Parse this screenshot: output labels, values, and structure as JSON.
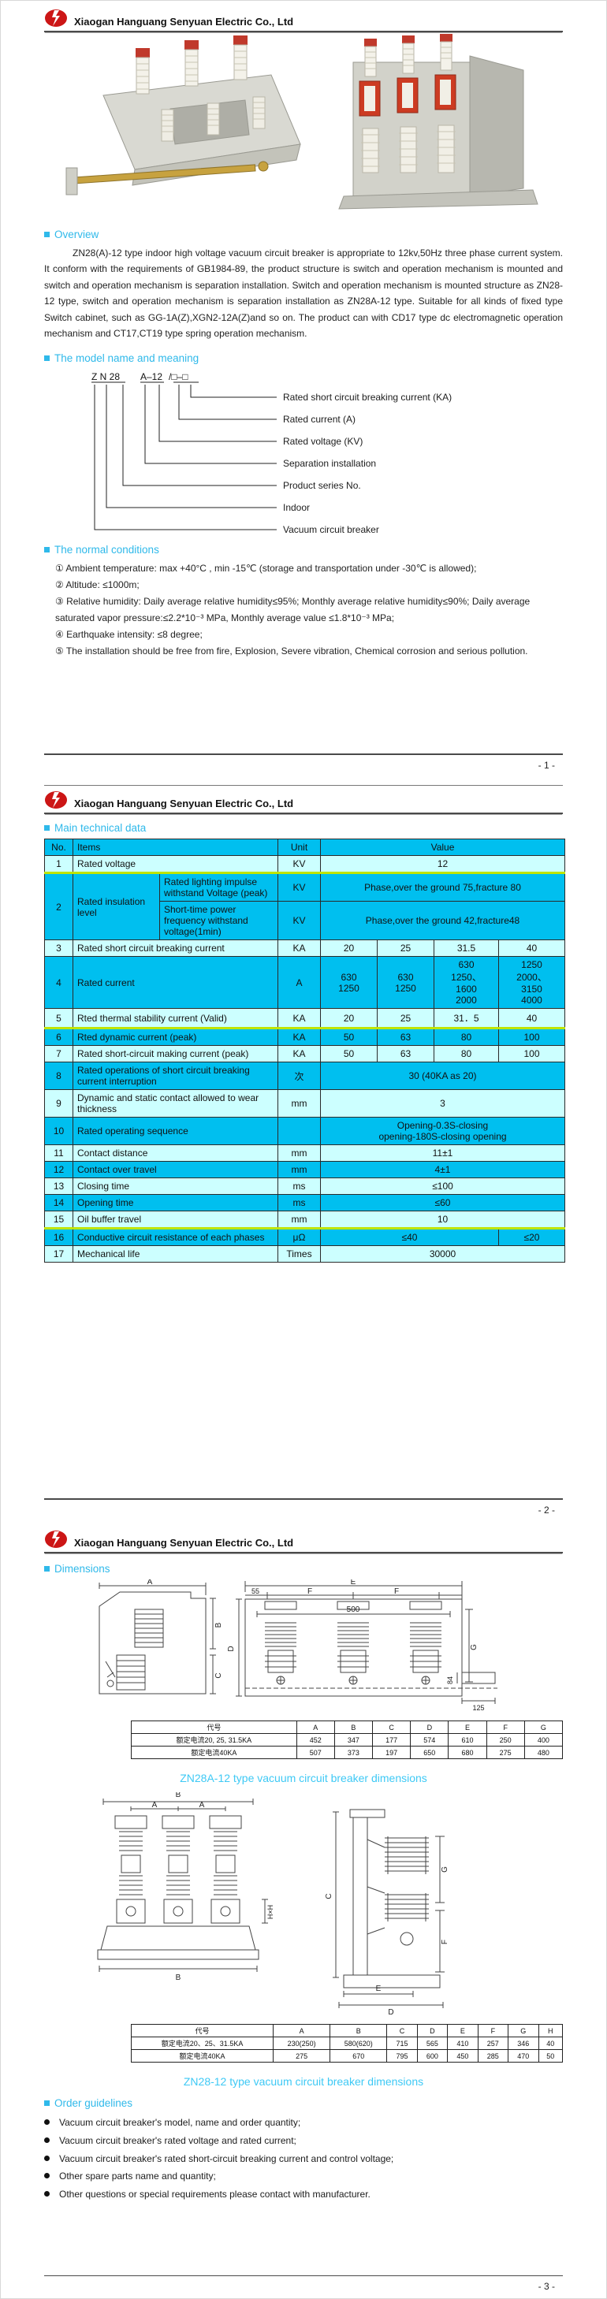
{
  "colors": {
    "accent": "#2fb9ea",
    "caption": "#3ec9f5",
    "table_cyan": "#00bfef",
    "table_light": "#ccffff",
    "separator_green": "#bfe400",
    "logo_red": "#cc1616"
  },
  "header": {
    "company": "Xiaogan Hanguang Senyuan Electric Co., Ltd",
    "logo_icon": "red-ellipse-lightning"
  },
  "footer": {
    "p1": "- 1 -",
    "p2": "- 2 -",
    "p3": "- 3 -"
  },
  "overview": {
    "title": "Overview",
    "paragraph": "ZN28(A)-12 type indoor high voltage vacuum circuit breaker is appropriate to 12kv,50Hz three phase current system. It conform with the requirements of GB1984-89, the product structure is switch and operation mechanism is mounted and switch and operation mechanism is separation installation. Switch and operation mechanism is mounted structure as ZN28-12 type, switch and operation mechanism is separation installation as ZN28A-12 type. Suitable for all kinds of fixed type Switch cabinet, such as GG-1A(Z),XGN2-12A(Z)and so on. The product can with CD17 type dc electromagnetic operation mechanism and CT17,CT19 type spring operation mechanism."
  },
  "model": {
    "title": "The model name and meaning",
    "code_part1": "Z N 28",
    "code_part2": "A–12",
    "code_part3": "/□–□",
    "labels": [
      "Rated short circuit breaking current (KA)",
      "Rated current (A)",
      "Rated voltage (KV)",
      "Separation installation",
      "Product series No.",
      "Indoor",
      "Vacuum circuit breaker"
    ]
  },
  "conditions": {
    "title": "The normal conditions",
    "items": [
      "①  Ambient temperature:  max +40°C ,  min -15℃ (storage and transportation under -30℃ is allowed);",
      "②  Altitude: ≤1000m;",
      "③  Relative humidity: Daily average relative humidity≤95%; Monthly average relative humidity≤90%; Daily average saturated vapor pressure:≤2.2*10⁻³ MPa,  Monthly average value ≤1.8*10⁻³ MPa;",
      "④  Earthquake intensity:  ≤8 degree;",
      "⑤  The installation should be free from fire, Explosion,  Severe vibration, Chemical corrosion and serious pollution."
    ]
  },
  "technical": {
    "title": "Main technical data",
    "head": {
      "no": "No.",
      "items": "Items",
      "unit": "Unit",
      "value": "Value"
    },
    "r1": {
      "no": "1",
      "item": "Rated voltage",
      "unit": "KV",
      "value": "12"
    },
    "r2": {
      "no": "2",
      "item": "Rated insulation level",
      "sub1": "Rated lighting impulse withstand Voltage (peak)",
      "unit1": "KV",
      "val1": "Phase,over the ground 75,fracture 80",
      "sub2": "Short-time power frequency withstand voltage(1min)",
      "unit2": "KV",
      "val2": "Phase,over the ground 42,fracture48"
    },
    "r3": {
      "no": "3",
      "item": "Rated short circuit breaking current",
      "unit": "KA",
      "v1": "20",
      "v2": "25",
      "v3": "31.5",
      "v4": "40"
    },
    "r4": {
      "no": "4",
      "item": "Rated current",
      "unit": "A",
      "v1": "630\n1250",
      "v2": "630\n1250",
      "v3": "630\n1250、\n1600\n2000",
      "v4": "1250\n2000、\n3150\n4000"
    },
    "r5": {
      "no": "5",
      "item": "Rted thermal stability current (Valid)",
      "unit": "KA",
      "v1": "20",
      "v2": "25",
      "v3": "31．5",
      "v4": "40"
    },
    "r6": {
      "no": "6",
      "item": "Rted dynamic current (peak)",
      "unit": "KA",
      "v1": "50",
      "v2": "63",
      "v3": "80",
      "v4": "100"
    },
    "r7": {
      "no": "7",
      "item": "Rated short-circuit making current (peak)",
      "unit": "KA",
      "v1": "50",
      "v2": "63",
      "v3": "80",
      "v4": "100"
    },
    "r8": {
      "no": "8",
      "item": "Rated operations of short circuit breaking current interruption",
      "unit": "次",
      "value": "30 (40KA as 20)"
    },
    "r9": {
      "no": "9",
      "item": "Dynamic and static contact allowed to wear thickness",
      "unit": "mm",
      "value": "3"
    },
    "r10": {
      "no": "10",
      "item": "Rated operating sequence",
      "unit": "",
      "value": "Opening-0.3S-closing\nopening-180S-closing opening"
    },
    "r11": {
      "no": "11",
      "item": "Contact distance",
      "unit": "mm",
      "value": "11±1"
    },
    "r12": {
      "no": "12",
      "item": "Contact over travel",
      "unit": "mm",
      "value": "4±1"
    },
    "r13": {
      "no": "13",
      "item": "Closing time",
      "unit": "ms",
      "value": "≤100"
    },
    "r14": {
      "no": "14",
      "item": "Opening time",
      "unit": "ms",
      "value": "≤60"
    },
    "r15": {
      "no": "15",
      "item": "Oil buffer travel",
      "unit": "mm",
      "value": "10"
    },
    "r16": {
      "no": "16",
      "item": "Conductive circuit resistance of each phases",
      "unit": "μΩ",
      "v1": "≤40",
      "v2": "≤20"
    },
    "r17": {
      "no": "17",
      "item": "Mechanical life",
      "unit": "Times",
      "value": "30000"
    }
  },
  "dimensions": {
    "title": "Dimensions",
    "drawing_a": {
      "caption": "ZN28A-12 type vacuum circuit breaker dimensions",
      "labels": {
        "a": "A",
        "b": "B",
        "c": "C",
        "e": "E",
        "n55": "55",
        "f1": "F",
        "f2": "F",
        "n500": "500",
        "d": "D",
        "g": "G",
        "n84": "84",
        "n125": "125"
      },
      "table": {
        "headers": [
          "代号",
          "A",
          "B",
          "C",
          "D",
          "E",
          "F",
          "G"
        ],
        "rows": [
          [
            "额定电流20, 25, 31.5KA",
            "452",
            "347",
            "177",
            "574",
            "610",
            "250",
            "400"
          ],
          [
            "额定电流40KA",
            "507",
            "373",
            "197",
            "650",
            "680",
            "275",
            "480"
          ]
        ]
      }
    },
    "drawing_b": {
      "caption": "ZN28-12 type vacuum circuit breaker dimensions",
      "labels": {
        "b_top": "B",
        "a1": "A",
        "a2": "A",
        "hh": "H×H",
        "b_bottom": "B",
        "c": "C",
        "g": "G",
        "f": "F",
        "e": "E",
        "d": "D"
      },
      "table": {
        "headers": [
          "代号",
          "A",
          "B",
          "C",
          "D",
          "E",
          "F",
          "G",
          "H"
        ],
        "rows": [
          [
            "额定电流20、25、31.5KA",
            "230(250)",
            "580(620)",
            "715",
            "565",
            "410",
            "257",
            "346",
            "40"
          ],
          [
            "额定电流40KA",
            "275",
            "670",
            "795",
            "600",
            "450",
            "285",
            "470",
            "50"
          ]
        ]
      }
    }
  },
  "order": {
    "title": "Order guidelines",
    "items": [
      "Vacuum circuit breaker's  model, name and order quantity;",
      "Vacuum circuit breaker's rated voltage and rated current;",
      "Vacuum circuit breaker's rated short-circuit breaking current and control voltage;",
      "Other spare parts name and quantity;",
      "Other questions or special requirements please contact with manufacturer."
    ]
  }
}
